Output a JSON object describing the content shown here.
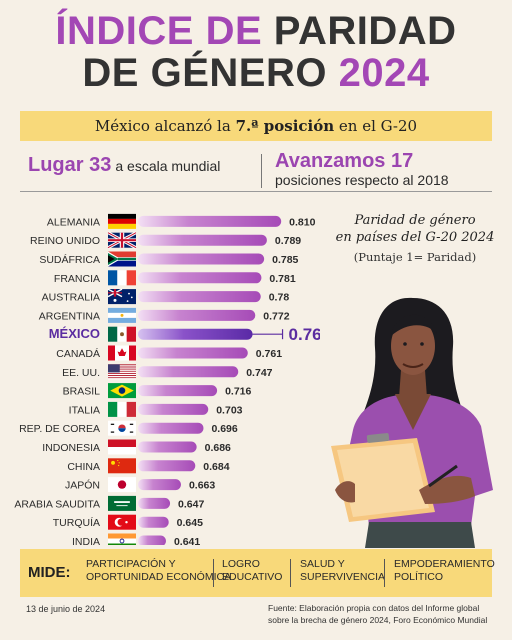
{
  "header": {
    "title_line1_purple": "ÍNDICE DE",
    "title_line1_dark": "PARIDAD",
    "title_line2_dark": "DE GÉNERO",
    "title_line2_purple": "2024"
  },
  "subtitle": {
    "pre": "México alcanzó la ",
    "bold": "7.ª posición",
    "post": " en el G-20"
  },
  "stats": {
    "left_big": "Lugar 33",
    "left_small": "a escala mundial",
    "right_big": "Avanzamos 17",
    "right_small": "posiciones respecto al 2018"
  },
  "chart_note": {
    "line1": "Paridad de género",
    "line2": "en países del G-20 2024",
    "line3": "(Puntaje 1= Paridad)"
  },
  "chart_data": {
    "type": "bar",
    "orientation": "horizontal",
    "categories": [
      "ALEMANIA",
      "REINO UNIDO",
      "SUDÁFRICA",
      "FRANCIA",
      "AUSTRALIA",
      "ARGENTINA",
      "MÉXICO",
      "CANADÁ",
      "EE. UU.",
      "BRASIL",
      "ITALIA",
      "REP. DE COREA",
      "INDONESIA",
      "CHINA",
      "JAPÓN",
      "ARABIA SAUDITA",
      "TURQUÍA",
      "INDIA"
    ],
    "value_labels": [
      "0.810",
      "0.789",
      "0.785",
      "0.781",
      "0.78",
      "0.772",
      "0.768",
      "0.761",
      "0.747",
      "0.716",
      "0.703",
      "0.696",
      "0.686",
      "0.684",
      "0.663",
      "0.647",
      "0.645",
      "0.641"
    ],
    "values": [
      0.81,
      0.789,
      0.785,
      0.781,
      0.78,
      0.772,
      0.768,
      0.761,
      0.747,
      0.716,
      0.703,
      0.696,
      0.686,
      0.684,
      0.663,
      0.647,
      0.645,
      0.641
    ],
    "highlight": "MÉXICO",
    "flags": [
      "germany",
      "united-kingdom",
      "south-africa",
      "france",
      "australia",
      "argentina",
      "mexico",
      "canada",
      "united-states",
      "brazil",
      "italy",
      "south-korea",
      "indonesia",
      "china",
      "japan",
      "saudi-arabia",
      "turkey",
      "india"
    ],
    "colors": {
      "bar": "#a64bb7",
      "bar_light": "#f3dff4",
      "highlight": "#6a2fb0",
      "highlight_text": "#5b2ca0",
      "label": "#2b2b2b"
    },
    "xlim": [
      0.6,
      0.82
    ]
  },
  "mide": {
    "label": "MIDE:",
    "items": [
      {
        "line1": "PARTICIPACIÓN Y",
        "line2": "OPORTUNIDAD ECONÓMICA"
      },
      {
        "line1": "LOGRO",
        "line2": "EDUCATIVO"
      },
      {
        "line1": "SALUD Y",
        "line2": "SUPERVIVENCIA"
      },
      {
        "line1": "EMPODERAMIENTO",
        "line2": "POLÍTICO"
      }
    ]
  },
  "footer": {
    "date": "13 de junio de 2024",
    "source": "Fuente: Elaboración propia con datos del Informe global sobre la brecha de género 2024, Foro Económico Mundial"
  },
  "colors": {
    "background": "#f6f0e6",
    "accent_purple": "#a347b5",
    "yellow": "#f8d97a"
  },
  "illustration": {
    "icon": "woman-with-clipboard-icon"
  }
}
